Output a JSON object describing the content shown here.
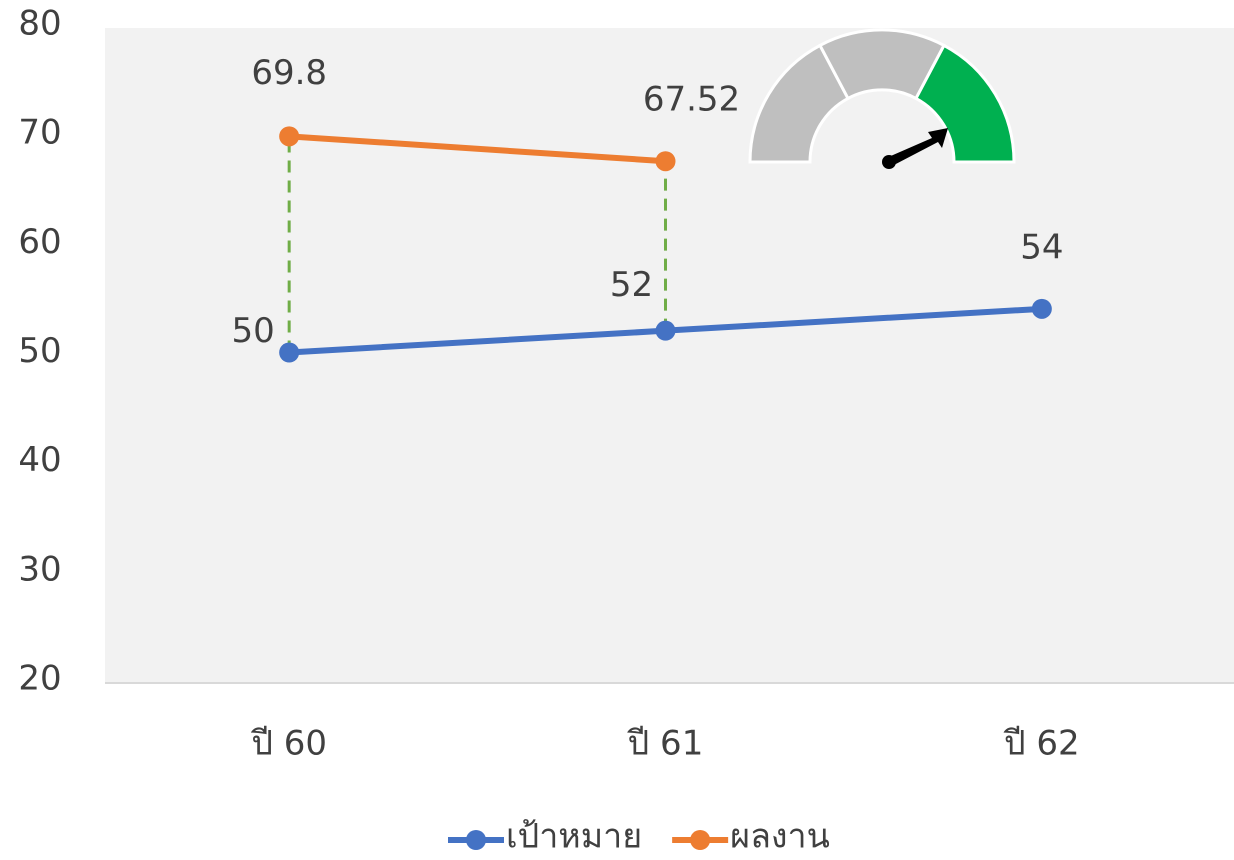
{
  "chart_data": {
    "type": "line",
    "categories": [
      "ปี 60",
      "ปี 61",
      "ปี 62"
    ],
    "series": [
      {
        "name": "เป้าหมาย",
        "color": "#4472c4",
        "values": [
          50,
          52,
          54
        ]
      },
      {
        "name": "ผลงาน",
        "color": "#ed7d31",
        "values": [
          69.8,
          67.52,
          null
        ]
      }
    ],
    "ylim": [
      20,
      80
    ],
    "yticks": [
      20,
      30,
      40,
      50,
      60,
      70,
      80
    ],
    "drop_line_color": "#70ad47",
    "legend": "bottom"
  }
}
